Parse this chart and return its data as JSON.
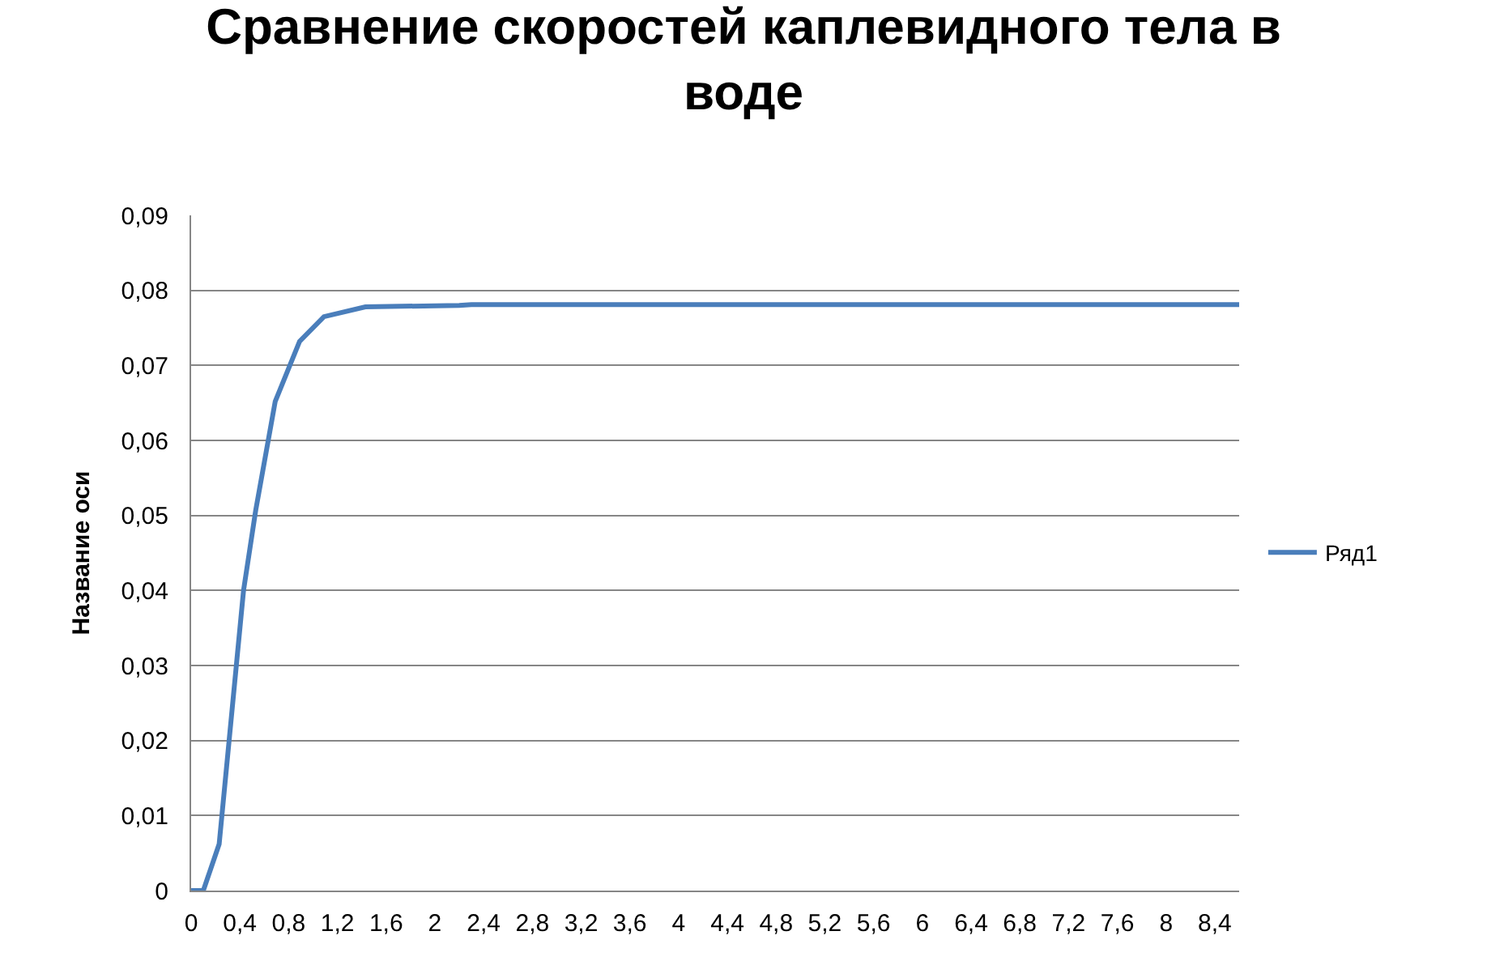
{
  "chart_data": {
    "type": "line",
    "title": "Сравнение скоростей каплевидного тела в воде",
    "ylabel": "Название оси",
    "x": [
      0,
      0.1,
      0.23,
      0.43,
      0.53,
      0.69,
      0.89,
      1.09,
      1.43,
      2.2,
      2.3,
      8.6
    ],
    "series": [
      {
        "name": "Ряд1",
        "color": "#4a7ebb",
        "values": [
          0,
          0,
          0.0062,
          0.04,
          0.0507,
          0.0652,
          0.0732,
          0.0765,
          0.0778,
          0.078,
          0.0781,
          0.0781
        ]
      }
    ],
    "xlim": [
      0,
      8.6
    ],
    "xticks": [
      0,
      {
        "value": 0.4,
        "label": "0,4"
      },
      {
        "value": 0.8,
        "label": "0,8"
      },
      {
        "value": 1.2,
        "label": "1,2"
      },
      {
        "value": 1.6,
        "label": "1,6"
      },
      2,
      {
        "value": 2.4,
        "label": "2,4"
      },
      {
        "value": 2.8,
        "label": "2,8"
      },
      {
        "value": 3.2,
        "label": "3,2"
      },
      {
        "value": 3.6,
        "label": "3,6"
      },
      4,
      {
        "value": 4.4,
        "label": "4,4"
      },
      {
        "value": 4.8,
        "label": "4,8"
      },
      {
        "value": 5.2,
        "label": "5,2"
      },
      {
        "value": 5.6,
        "label": "5,6"
      },
      6,
      {
        "value": 6.4,
        "label": "6,4"
      },
      {
        "value": 6.8,
        "label": "6,8"
      },
      {
        "value": 7.2,
        "label": "7,2"
      },
      {
        "value": 7.6,
        "label": "7,6"
      },
      8,
      {
        "value": 8.4,
        "label": "8,4"
      }
    ],
    "ylim": [
      0,
      0.09
    ],
    "yticks": [
      0,
      {
        "value": 0.01,
        "label": "0,01"
      },
      {
        "value": 0.02,
        "label": "0,02"
      },
      {
        "value": 0.03,
        "label": "0,03"
      },
      {
        "value": 0.04,
        "label": "0,04"
      },
      {
        "value": 0.05,
        "label": "0,05"
      },
      {
        "value": 0.06,
        "label": "0,06"
      },
      {
        "value": 0.07,
        "label": "0,07"
      },
      {
        "value": 0.08,
        "label": "0,08"
      },
      {
        "value": 0.09,
        "label": "0,09"
      }
    ],
    "grid": "y",
    "legend": "right",
    "marker": "none",
    "line_style": "solid"
  }
}
